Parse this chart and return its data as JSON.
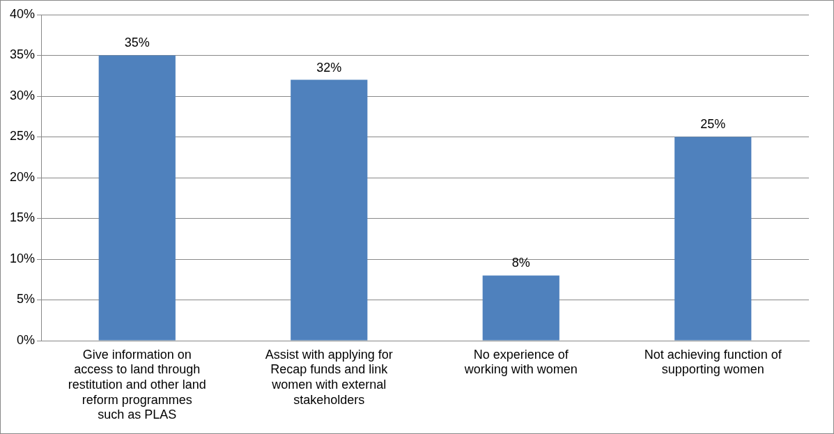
{
  "chart_data": {
    "type": "bar",
    "categories": [
      "Give information on access to land through restitution and other land reform programmes such as PLAS",
      "Assist with applying for Recap funds and link women with external stakeholders",
      "No experience of working with women",
      "Not achieving function of supporting women"
    ],
    "values": [
      35,
      32,
      8,
      25
    ],
    "color": "#4f81bd",
    "ylim": [
      0,
      40
    ],
    "yticks": [
      {
        "value": 0,
        "label": "0%"
      },
      {
        "value": 5,
        "label": "5%"
      },
      {
        "value": 10,
        "label": "10%"
      },
      {
        "value": 15,
        "label": "15%"
      },
      {
        "value": 20,
        "label": "20%"
      },
      {
        "value": 25,
        "label": "25%"
      },
      {
        "value": 30,
        "label": "30%"
      },
      {
        "value": 35,
        "label": "35%"
      },
      {
        "value": 40,
        "label": "40%"
      }
    ],
    "value_labels": [
      "35%",
      "32%",
      "8%",
      "25%"
    ],
    "grid": "y",
    "legend": false
  }
}
